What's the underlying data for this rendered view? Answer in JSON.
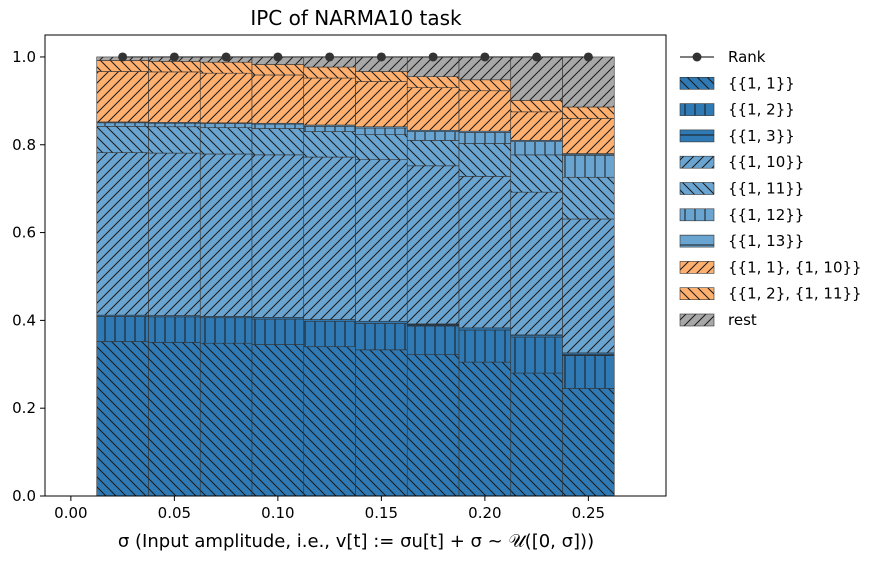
{
  "chart_data": {
    "type": "stacked-bar",
    "title": "IPC of NARMA10 task",
    "xlabel": "σ (Input amplitude, i.e., v[t] := σu[t] + σ ~ 𝒰([0, σ]))",
    "ylabel": "",
    "xlim": [
      -0.0125,
      0.2875
    ],
    "ylim": [
      0,
      1.05
    ],
    "x_ticks": [
      0.0,
      0.05,
      0.1,
      0.15,
      0.2,
      0.25
    ],
    "x_tick_labels": [
      "0.00",
      "0.05",
      "0.10",
      "0.15",
      "0.20",
      "0.25"
    ],
    "y_ticks": [
      0.0,
      0.2,
      0.4,
      0.6,
      0.8,
      1.0
    ],
    "y_tick_labels": [
      "0.0",
      "0.2",
      "0.4",
      "0.6",
      "0.8",
      "1.0"
    ],
    "bar_width": 0.025,
    "x": [
      0.025,
      0.05,
      0.075,
      0.1,
      0.125,
      0.15,
      0.175,
      0.2,
      0.225,
      0.25
    ],
    "series": [
      {
        "name": "{{1, 1}}",
        "color": "#2f7ab5",
        "hatch": "backslash",
        "values": [
          0.352,
          0.35,
          0.348,
          0.345,
          0.34,
          0.333,
          0.322,
          0.305,
          0.28,
          0.245
        ]
      },
      {
        "name": "{{1, 2}}",
        "color": "#2f7ab5",
        "hatch": "vertical",
        "values": [
          0.057,
          0.058,
          0.058,
          0.058,
          0.058,
          0.06,
          0.065,
          0.073,
          0.082,
          0.075
        ]
      },
      {
        "name": "{{1, 3}}",
        "color": "#2f7ab5",
        "hatch": "horizontal",
        "values": [
          0.003,
          0.003,
          0.003,
          0.004,
          0.004,
          0.005,
          0.005,
          0.005,
          0.005,
          0.006
        ]
      },
      {
        "name": "{{1, 10}}",
        "color": "#6aa5d2",
        "hatch": "slash",
        "values": [
          0.37,
          0.37,
          0.37,
          0.37,
          0.37,
          0.368,
          0.36,
          0.345,
          0.325,
          0.305
        ]
      },
      {
        "name": "{{1, 11}}",
        "color": "#6aa5d2",
        "hatch": "backslash",
        "values": [
          0.06,
          0.06,
          0.06,
          0.06,
          0.058,
          0.057,
          0.058,
          0.075,
          0.085,
          0.095
        ]
      },
      {
        "name": "{{1, 12}}",
        "color": "#6aa5d2",
        "hatch": "vertical",
        "values": [
          0.008,
          0.008,
          0.009,
          0.01,
          0.012,
          0.015,
          0.02,
          0.025,
          0.03,
          0.05
        ]
      },
      {
        "name": "{{1, 13}}",
        "color": "#6aa5d2",
        "hatch": "horizontal",
        "values": [
          0.002,
          0.002,
          0.002,
          0.002,
          0.003,
          0.003,
          0.003,
          0.003,
          0.003,
          0.004
        ]
      },
      {
        "name": "{{1, 1}, {1, 10}}",
        "color": "#ffb06e",
        "hatch": "slash",
        "values": [
          0.115,
          0.115,
          0.113,
          0.11,
          0.107,
          0.103,
          0.097,
          0.092,
          0.065,
          0.08
        ]
      },
      {
        "name": "{{1, 2}, {1, 11}}",
        "color": "#ffb06e",
        "hatch": "backslash",
        "values": [
          0.025,
          0.024,
          0.025,
          0.024,
          0.025,
          0.023,
          0.025,
          0.025,
          0.026,
          0.026
        ]
      },
      {
        "name": "rest",
        "color": "#a8a8a8",
        "hatch": "slash",
        "values": [
          0.008,
          0.01,
          0.012,
          0.017,
          0.023,
          0.033,
          0.045,
          0.052,
          0.099,
          0.114
        ]
      }
    ],
    "rank": {
      "name": "Rank",
      "color": "#333333",
      "values": [
        1.0,
        1.0,
        1.0,
        1.0,
        1.0,
        1.0,
        1.0,
        1.0,
        1.0,
        1.0
      ]
    },
    "legend": {
      "placement": "outside-right",
      "entries": [
        "Rank",
        "{{1, 1}}",
        "{{1, 2}}",
        "{{1, 3}}",
        "{{1, 10}}",
        "{{1, 11}}",
        "{{1, 12}}",
        "{{1, 13}}",
        "{{1, 1}, {1, 10}}",
        "{{1, 2}, {1, 11}}",
        "rest"
      ]
    },
    "grid": false
  }
}
